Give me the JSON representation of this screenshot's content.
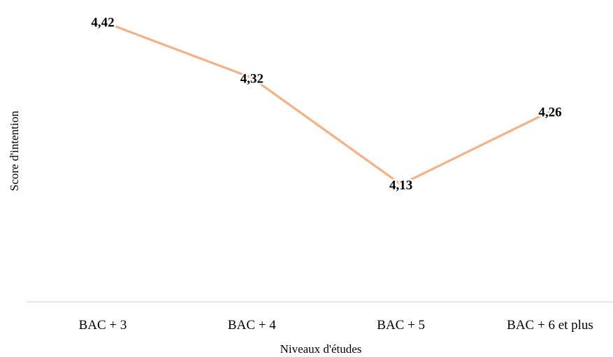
{
  "chart_data": {
    "type": "line",
    "categories": [
      "BAC + 3",
      "BAC + 4",
      "BAC + 5",
      "BAC + 6 et plus"
    ],
    "series": [
      {
        "values": [
          4.42,
          4.32,
          4.13,
          4.26
        ]
      }
    ],
    "value_labels": [
      "4,42",
      "4,32",
      "4,13",
      "4,26"
    ],
    "xlabel": "Niveaux d'études",
    "ylabel": "Score d'intention",
    "grid": false,
    "legend": "none",
    "colors": {
      "line": "#F4B183",
      "axis": "#D9D9D9"
    }
  }
}
